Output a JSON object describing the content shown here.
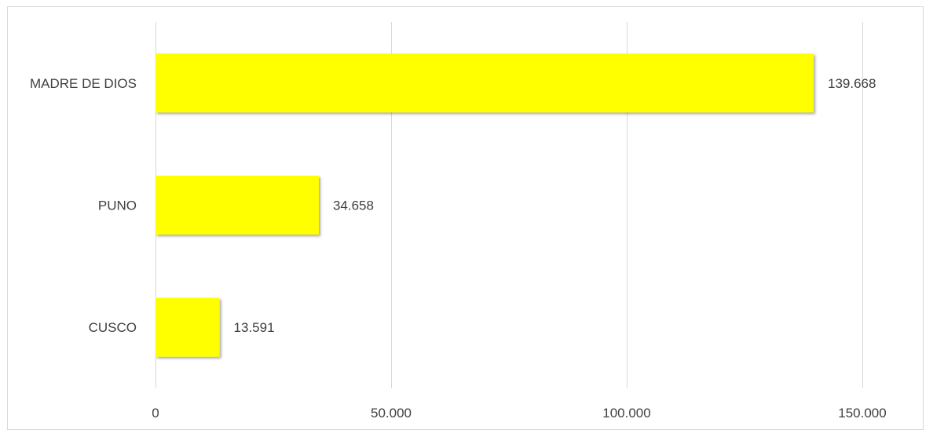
{
  "chart_data": {
    "type": "bar",
    "orientation": "horizontal",
    "categories": [
      "MADRE DE DIOS",
      "PUNO",
      "CUSCO"
    ],
    "values": [
      139668,
      34658,
      13591
    ],
    "value_labels": [
      "139.668",
      "34.658",
      "13.591"
    ],
    "xlim": [
      0,
      150000
    ],
    "x_ticks": [
      0,
      50000,
      100000,
      150000
    ],
    "x_tick_labels": [
      "0",
      "50.000",
      "100.000",
      "150.000"
    ],
    "grid": true,
    "legend": "none",
    "colors": {
      "bar": "#ffff00",
      "grid": "#d9d9d9",
      "text": "#404040"
    }
  }
}
